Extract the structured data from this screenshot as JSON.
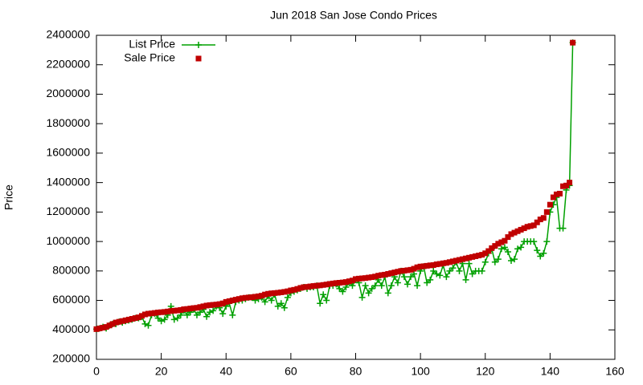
{
  "chart_data": {
    "type": "line",
    "title": "Jun 2018 San Jose Condo Prices",
    "y_label": "Price",
    "x": [
      0,
      1,
      2,
      3,
      4,
      5,
      6,
      7,
      8,
      9,
      10,
      11,
      12,
      13,
      14,
      15,
      16,
      17,
      18,
      19,
      20,
      21,
      22,
      23,
      24,
      25,
      26,
      27,
      28,
      29,
      30,
      31,
      32,
      33,
      34,
      35,
      36,
      37,
      38,
      39,
      40,
      41,
      42,
      43,
      44,
      45,
      46,
      47,
      48,
      49,
      50,
      51,
      52,
      53,
      54,
      55,
      56,
      57,
      58,
      59,
      60,
      61,
      62,
      63,
      64,
      65,
      66,
      67,
      68,
      69,
      70,
      71,
      72,
      73,
      74,
      75,
      76,
      77,
      78,
      79,
      80,
      81,
      82,
      83,
      84,
      85,
      86,
      87,
      88,
      89,
      90,
      91,
      92,
      93,
      94,
      95,
      96,
      97,
      98,
      99,
      100,
      101,
      102,
      103,
      104,
      105,
      106,
      107,
      108,
      109,
      110,
      111,
      112,
      113,
      114,
      115,
      116,
      117,
      118,
      119,
      120,
      121,
      122,
      123,
      124,
      125,
      126,
      127,
      128,
      129,
      130,
      131,
      132,
      133,
      134,
      135,
      136,
      137,
      138,
      139,
      140,
      141,
      142,
      143,
      144,
      145,
      146,
      147
    ],
    "series": [
      {
        "name": "List Price",
        "color": "#00a000",
        "line": true,
        "marker": "plus",
        "values": [
          405000,
          410000,
          420000,
          410000,
          430000,
          440000,
          440000,
          455000,
          450000,
          460000,
          465000,
          470000,
          480000,
          480000,
          490000,
          440000,
          430000,
          500000,
          510000,
          480000,
          460000,
          470000,
          500000,
          560000,
          470000,
          480000,
          500000,
          530000,
          500000,
          520000,
          540000,
          500000,
          520000,
          540000,
          490000,
          520000,
          530000,
          560000,
          550000,
          510000,
          560000,
          580000,
          500000,
          590000,
          600000,
          600000,
          610000,
          620000,
          620000,
          600000,
          610000,
          620000,
          590000,
          630000,
          600000,
          640000,
          560000,
          580000,
          550000,
          620000,
          650000,
          660000,
          670000,
          680000,
          690000,
          680000,
          690000,
          690000,
          700000,
          580000,
          640000,
          600000,
          700000,
          700000,
          710000,
          680000,
          660000,
          690000,
          720000,
          700000,
          740000,
          720000,
          620000,
          700000,
          650000,
          680000,
          700000,
          740000,
          700000,
          760000,
          650000,
          700000,
          760000,
          720000,
          800000,
          760000,
          710000,
          760000,
          780000,
          700000,
          800000,
          830000,
          720000,
          740000,
          800000,
          780000,
          770000,
          840000,
          760000,
          800000,
          820000,
          860000,
          800000,
          850000,
          740000,
          850000,
          780000,
          800000,
          800000,
          800000,
          860000,
          920000,
          950000,
          860000,
          880000,
          950000,
          960000,
          930000,
          870000,
          880000,
          950000,
          960000,
          1000000,
          1000000,
          1000000,
          1000000,
          940000,
          900000,
          920000,
          1000000,
          1200000,
          1250000,
          1300000,
          1090000,
          1090000,
          1350000,
          1380000,
          2350000
        ]
      },
      {
        "name": "Sale Price",
        "color": "#c00000",
        "line": false,
        "marker": "square",
        "values": [
          405000,
          410000,
          415000,
          420000,
          430000,
          440000,
          450000,
          455000,
          460000,
          465000,
          470000,
          475000,
          480000,
          485000,
          495000,
          505000,
          510000,
          512000,
          515000,
          518000,
          520000,
          522000,
          525000,
          528000,
          530000,
          532000,
          535000,
          540000,
          542000,
          545000,
          548000,
          550000,
          555000,
          560000,
          565000,
          568000,
          570000,
          572000,
          575000,
          580000,
          590000,
          595000,
          600000,
          605000,
          610000,
          615000,
          618000,
          620000,
          622000,
          625000,
          628000,
          632000,
          640000,
          645000,
          648000,
          650000,
          652000,
          655000,
          658000,
          662000,
          668000,
          672000,
          678000,
          685000,
          690000,
          692000,
          695000,
          698000,
          700000,
          702000,
          705000,
          708000,
          712000,
          715000,
          718000,
          720000,
          722000,
          725000,
          730000,
          735000,
          745000,
          748000,
          750000,
          752000,
          755000,
          758000,
          762000,
          768000,
          772000,
          775000,
          780000,
          785000,
          790000,
          795000,
          800000,
          802000,
          805000,
          808000,
          815000,
          825000,
          830000,
          832000,
          835000,
          838000,
          840000,
          845000,
          848000,
          852000,
          855000,
          860000,
          865000,
          870000,
          875000,
          880000,
          885000,
          890000,
          895000,
          900000,
          905000,
          910000,
          920000,
          935000,
          955000,
          970000,
          985000,
          995000,
          1005000,
          1030000,
          1050000,
          1060000,
          1070000,
          1080000,
          1090000,
          1100000,
          1105000,
          1110000,
          1130000,
          1150000,
          1160000,
          1200000,
          1250000,
          1300000,
          1320000,
          1325000,
          1375000,
          1380000,
          1400000,
          2350000
        ]
      }
    ],
    "xlim": [
      0,
      160
    ],
    "xticks": [
      0,
      20,
      40,
      60,
      80,
      100,
      120,
      140,
      160
    ],
    "ylim": [
      200000,
      2400000
    ],
    "yticks": [
      200000,
      400000,
      600000,
      800000,
      1000000,
      1200000,
      1400000,
      1600000,
      1800000,
      2000000,
      2200000,
      2400000
    ],
    "legend": "top-left"
  }
}
